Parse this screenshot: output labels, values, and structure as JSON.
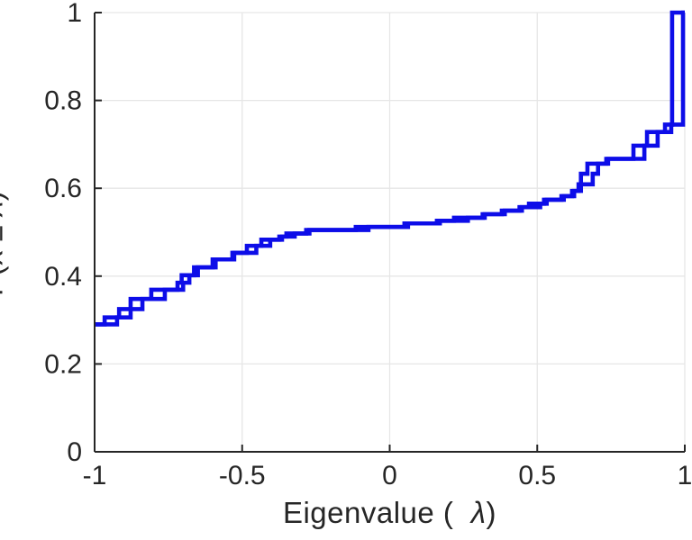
{
  "chart_data": {
    "type": "line",
    "subtype": "empirical-cdf-stairs",
    "title": "",
    "xlabel": {
      "pre": "Eigenvalue (  ",
      "sym": "λ",
      "post": ")"
    },
    "ylabel": {
      "pre": "P(x ",
      "leq": "≤",
      "mid": " ",
      "sym": "λ",
      "post": ")"
    },
    "xlim": [
      -1,
      1
    ],
    "ylim": [
      0,
      1
    ],
    "grid": true,
    "legend": "none",
    "xticks": [
      {
        "value": -1,
        "label": "-1"
      },
      {
        "value": -0.5,
        "label": "-0.5"
      },
      {
        "value": 0,
        "label": "0"
      },
      {
        "value": 0.5,
        "label": "0.5"
      },
      {
        "value": 1,
        "label": "1"
      }
    ],
    "yticks": [
      {
        "value": 0,
        "label": "0"
      },
      {
        "value": 0.2,
        "label": "0.2"
      },
      {
        "value": 0.4,
        "label": "0.4"
      },
      {
        "value": 0.6,
        "label": "0.6"
      },
      {
        "value": 0.8,
        "label": "0.8"
      },
      {
        "value": 1,
        "label": "1"
      }
    ],
    "colors": {
      "line": "#0d0de8",
      "axis": "#262626",
      "grid": "#e6e6e6",
      "tick_label": "#262626",
      "background": "#ffffff"
    },
    "series": [
      {
        "name": "empirical-cdf-1",
        "start": [
          -1,
          0.29
        ],
        "steps": [
          [
            -0.966,
            0.306
          ],
          [
            -0.917,
            0.325
          ],
          [
            -0.878,
            0.348
          ],
          [
            -0.808,
            0.369
          ],
          [
            -0.719,
            0.385
          ],
          [
            -0.705,
            0.402
          ],
          [
            -0.663,
            0.42
          ],
          [
            -0.6,
            0.438
          ],
          [
            -0.533,
            0.453
          ],
          [
            -0.484,
            0.469
          ],
          [
            -0.435,
            0.483
          ],
          [
            -0.374,
            0.49
          ],
          [
            -0.35,
            0.497
          ],
          [
            -0.283,
            0.505
          ],
          [
            -0.115,
            0.512
          ],
          [
            0.05,
            0.52
          ],
          [
            0.16,
            0.526
          ],
          [
            0.218,
            0.533
          ],
          [
            0.315,
            0.541
          ],
          [
            0.38,
            0.549
          ],
          [
            0.44,
            0.557
          ],
          [
            0.472,
            0.565
          ],
          [
            0.523,
            0.574
          ],
          [
            0.582,
            0.582
          ],
          [
            0.618,
            0.594
          ],
          [
            0.64,
            0.609
          ],
          [
            0.648,
            0.633
          ],
          [
            0.67,
            0.656
          ],
          [
            0.734,
            0.667
          ],
          [
            0.826,
            0.697
          ],
          [
            0.872,
            0.728
          ],
          [
            0.933,
            0.745
          ],
          [
            0.957,
            1.0
          ]
        ],
        "end_x": 1.0
      },
      {
        "name": "empirical-cdf-2",
        "start": [
          -1,
          0.29
        ],
        "steps": [
          [
            -0.924,
            0.306
          ],
          [
            -0.878,
            0.325
          ],
          [
            -0.838,
            0.348
          ],
          [
            -0.762,
            0.369
          ],
          [
            -0.7,
            0.385
          ],
          [
            -0.679,
            0.402
          ],
          [
            -0.65,
            0.42
          ],
          [
            -0.59,
            0.438
          ],
          [
            -0.527,
            0.453
          ],
          [
            -0.452,
            0.469
          ],
          [
            -0.405,
            0.483
          ],
          [
            -0.365,
            0.49
          ],
          [
            -0.322,
            0.497
          ],
          [
            -0.272,
            0.505
          ],
          [
            -0.072,
            0.512
          ],
          [
            0.062,
            0.52
          ],
          [
            0.17,
            0.526
          ],
          [
            0.265,
            0.533
          ],
          [
            0.322,
            0.541
          ],
          [
            0.39,
            0.549
          ],
          [
            0.448,
            0.557
          ],
          [
            0.51,
            0.565
          ],
          [
            0.532,
            0.574
          ],
          [
            0.59,
            0.582
          ],
          [
            0.625,
            0.594
          ],
          [
            0.648,
            0.609
          ],
          [
            0.688,
            0.633
          ],
          [
            0.706,
            0.656
          ],
          [
            0.74,
            0.667
          ],
          [
            0.863,
            0.697
          ],
          [
            0.908,
            0.728
          ],
          [
            0.954,
            0.745
          ],
          [
            0.994,
            1.0
          ]
        ],
        "end_x": 1.0
      }
    ]
  }
}
